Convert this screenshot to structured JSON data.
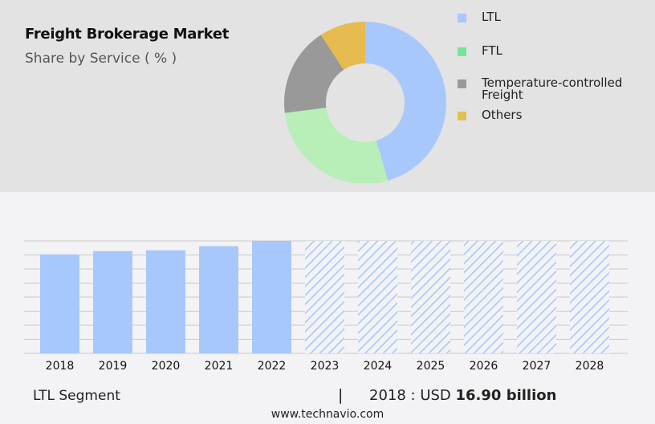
{
  "header": {
    "title": "Freight Brokerage Market",
    "subtitle": "Share by Service ( % )"
  },
  "chart_data": [
    {
      "type": "pie",
      "style": "donut",
      "categories": [
        "LTL",
        "FTL",
        "Temperature-controlled Freight",
        "Others"
      ],
      "legend_lines": [
        [
          "LTL"
        ],
        [
          "FTL"
        ],
        [
          "Temperature-controlled",
          "Freight"
        ],
        [
          "Others"
        ]
      ],
      "values": [
        45.5,
        27.5,
        17.8,
        9.2
      ],
      "colors": [
        "#a8c8fc",
        "#b8eeb8",
        "#999999",
        "#e6bc50"
      ],
      "legend_colors": [
        "#a8c8fc",
        "#77e39a",
        "#999999",
        "#e0c050"
      ],
      "legend_placement": "right"
    },
    {
      "type": "bar",
      "categories": [
        "2018",
        "2019",
        "2020",
        "2021",
        "2022",
        "2023",
        "2024",
        "2025",
        "2026",
        "2027",
        "2028"
      ],
      "values": [
        16.9,
        17.45,
        17.6,
        18.3,
        19.2,
        null,
        null,
        null,
        null,
        null,
        null
      ],
      "forecast": [
        false,
        false,
        false,
        false,
        false,
        true,
        true,
        true,
        true,
        true,
        true
      ],
      "ylim": [
        0,
        19.2
      ],
      "grid": true,
      "color": "#a8c8fc",
      "xlabel": "",
      "ylabel": ""
    }
  ],
  "footer": {
    "segment": "LTL Segment",
    "separator": "|",
    "year_label": "2018 : USD ",
    "value": "16.90 billion",
    "site": "www.technavio.com"
  }
}
